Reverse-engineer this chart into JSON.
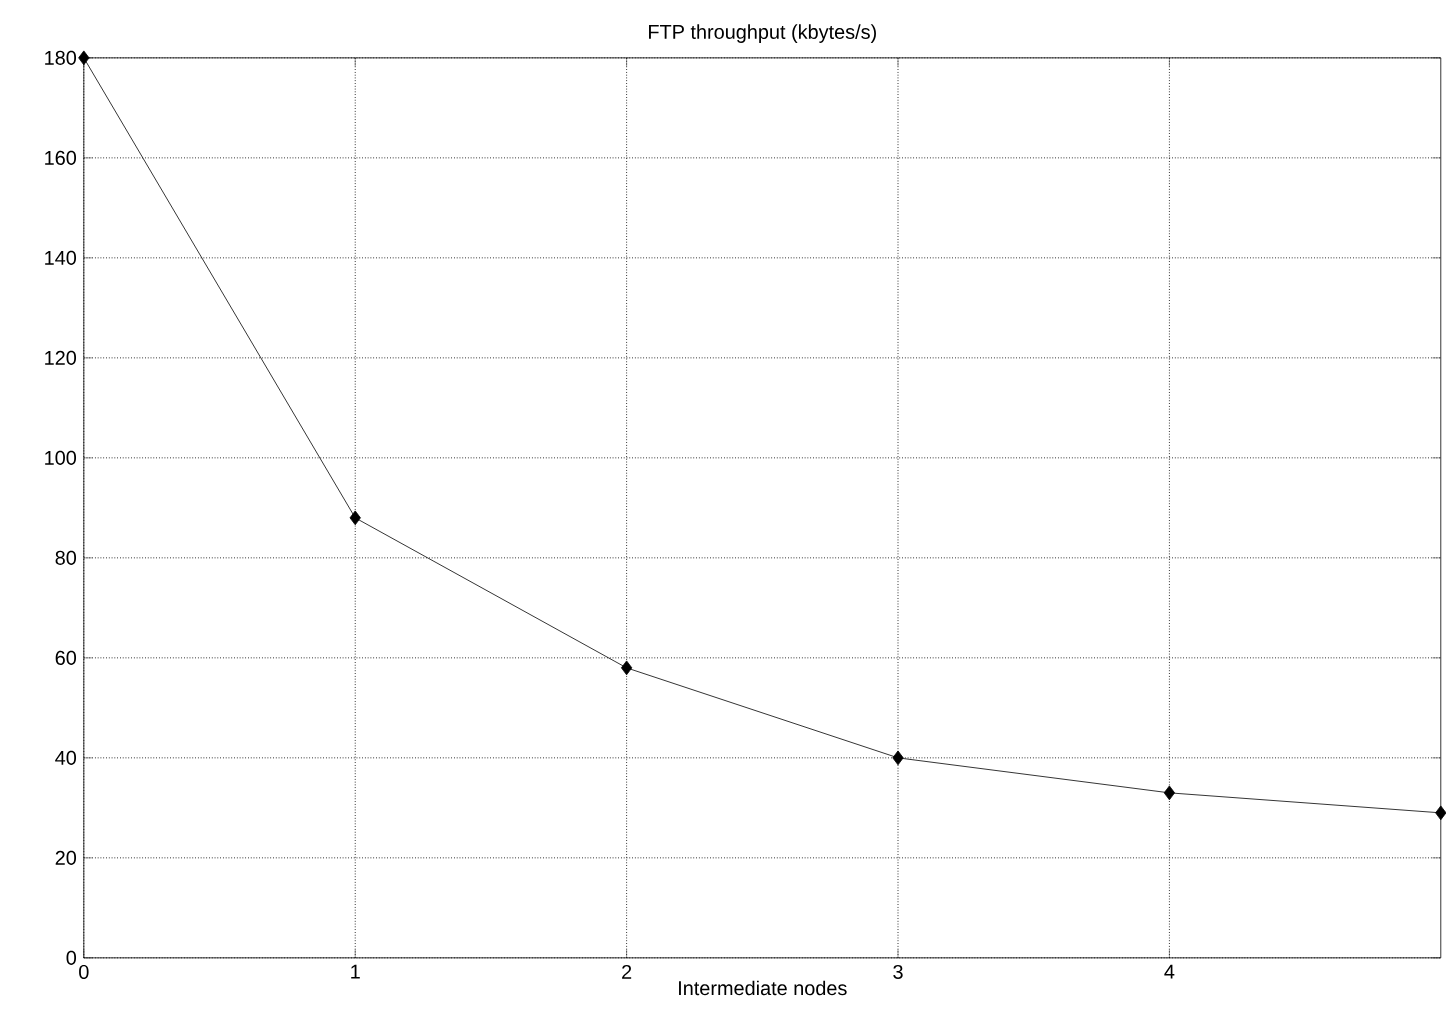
{
  "chart_data": {
    "type": "line",
    "title": "FTP throughput (kbytes/s)",
    "xlabel": "Intermediate nodes",
    "x": [
      0,
      1,
      2,
      3,
      4,
      5
    ],
    "series": [
      {
        "color": "#000000",
        "values": [
          180,
          88,
          58,
          40,
          33,
          29
        ]
      }
    ],
    "xlim": [
      0,
      5
    ],
    "ylim": [
      0,
      180
    ],
    "xticks": [
      0,
      1,
      2,
      3,
      4
    ],
    "yticks": [
      0,
      20,
      40,
      60,
      80,
      100,
      120,
      140,
      160,
      180
    ],
    "grid": true,
    "marker": "diamond",
    "line_style": "solid"
  }
}
